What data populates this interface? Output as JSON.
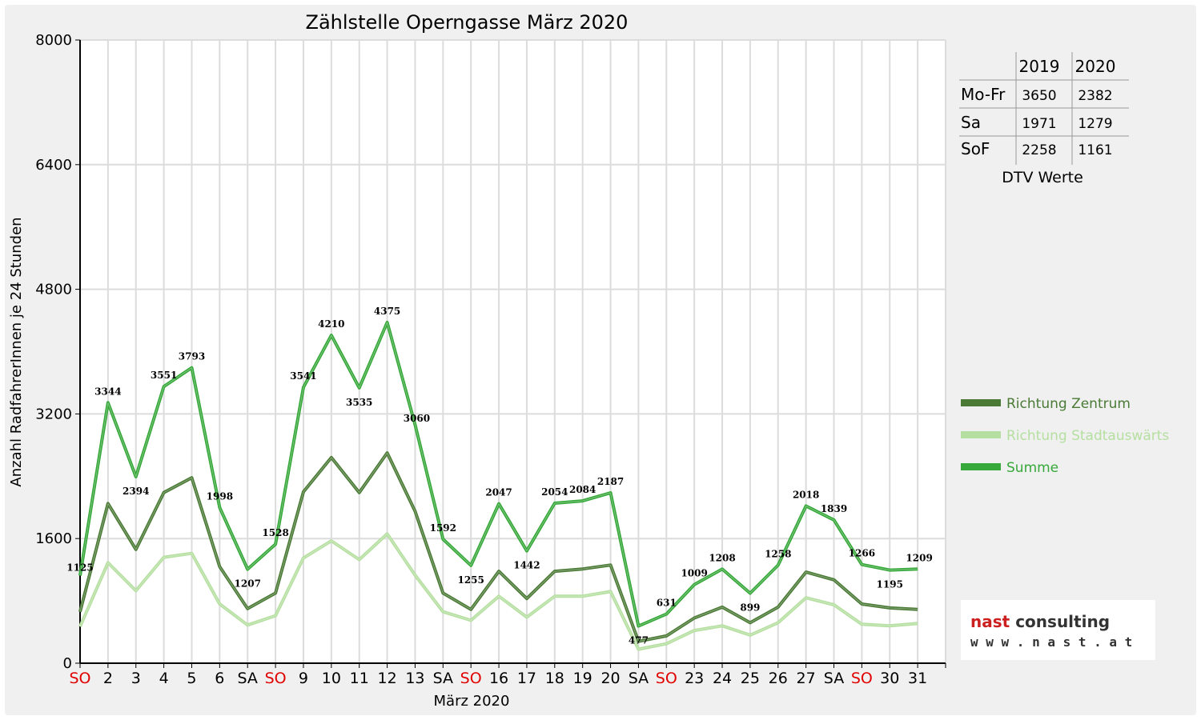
{
  "chart_data": {
    "type": "line",
    "title": "Zählstelle Operngasse März 2020",
    "xlabel": "März 2020",
    "ylabel": "Anzahl RadfahrerInnen je 24 Stunden",
    "ylim": [
      0,
      8000
    ],
    "yticks": [
      "0",
      "1600",
      "3200",
      "4800",
      "6400",
      "8000"
    ],
    "grid": true,
    "legend_position": "right",
    "categories": [
      "SO",
      "2",
      "3",
      "4",
      "5",
      "6",
      "SA",
      "SO",
      "9",
      "10",
      "11",
      "12",
      "13",
      "SA",
      "SO",
      "16",
      "17",
      "18",
      "19",
      "20",
      "SA",
      "SO",
      "23",
      "24",
      "25",
      "26",
      "27",
      "SA",
      "SO",
      "30",
      "31"
    ],
    "highlighted_categories": [
      "SO"
    ],
    "series": [
      {
        "name": "Richtung Zentrum",
        "color": "#4a7a35",
        "values": [
          660,
          2050,
          1460,
          2190,
          2380,
          1240,
          700,
          900,
          2200,
          2640,
          2190,
          2700,
          1950,
          900,
          690,
          1180,
          830,
          1180,
          1210,
          1260,
          280,
          350,
          580,
          720,
          520,
          720,
          1170,
          1070,
          760,
          710,
          690
        ]
      },
      {
        "name": "Richtung Stadtauswärts",
        "color": "#b5dfa0",
        "values": [
          470,
          1290,
          930,
          1360,
          1410,
          760,
          490,
          610,
          1350,
          1570,
          1330,
          1660,
          1130,
          660,
          550,
          860,
          590,
          860,
          860,
          920,
          180,
          250,
          420,
          480,
          360,
          520,
          840,
          750,
          500,
          480,
          510
        ]
      },
      {
        "name": "Summe",
        "color": "#37a83a",
        "values": [
          1125,
          3344,
          2394,
          3551,
          3793,
          1998,
          1207,
          1528,
          3541,
          4210,
          3535,
          4375,
          3060,
          1592,
          1255,
          2047,
          1442,
          2054,
          2084,
          2187,
          477,
          631,
          1009,
          1208,
          899,
          1258,
          2018,
          1839,
          1266,
          1195,
          1209
        ]
      }
    ],
    "data_labels": [
      "1125",
      "3344",
      "2394",
      "3551",
      "3793",
      "1998",
      "1207",
      "1528",
      "3541",
      "4210",
      "3535",
      "4375",
      "3060",
      "1592",
      "1255",
      "2047",
      "1442",
      "2054",
      "2084",
      "2187",
      "477",
      "631",
      "1009",
      "1208",
      "899",
      "1258",
      "2018",
      "1839",
      "1266",
      "1195",
      "1209"
    ]
  },
  "dtv_table": {
    "caption": "DTV Werte",
    "columns": [
      "2019",
      "2020"
    ],
    "rows": [
      {
        "label": "Mo-Fr",
        "v2019": "3650",
        "v2020": "2382"
      },
      {
        "label": "Sa",
        "v2019": "1971",
        "v2020": "1279"
      },
      {
        "label": "SoF",
        "v2019": "2258",
        "v2020": "1161"
      }
    ]
  },
  "logo": {
    "name_part1": "nast",
    "name_part2": "consulting",
    "url": "w w w . n a s t . a t",
    "color_primary": "#cc2020",
    "color_secondary": "#333333"
  }
}
